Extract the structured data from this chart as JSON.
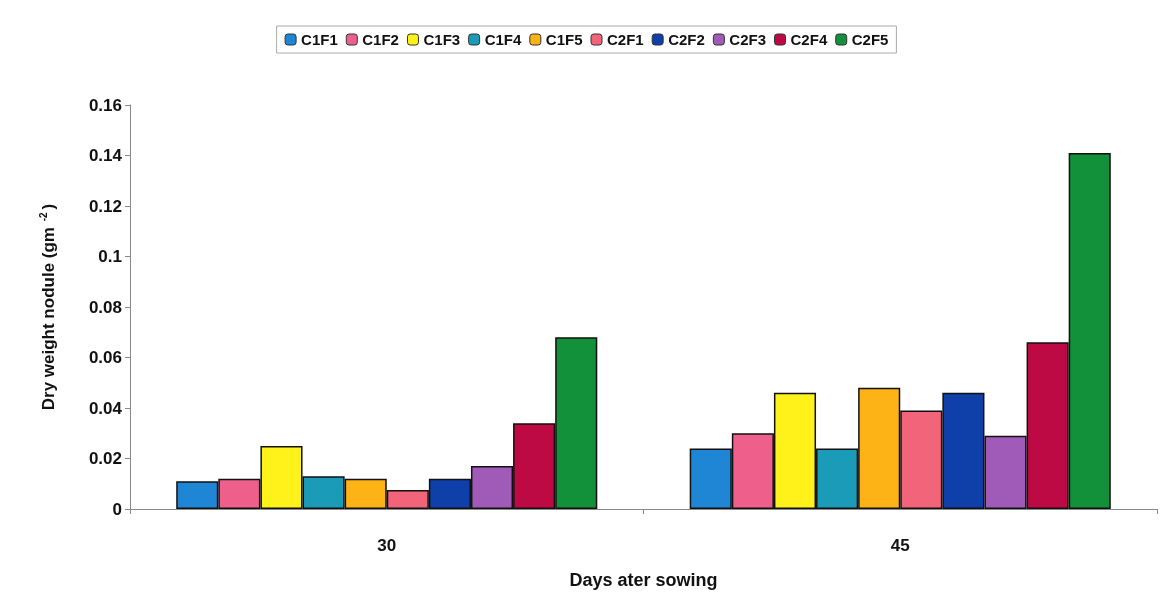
{
  "chart_data": {
    "type": "bar",
    "xlabel": "Days ater sowing",
    "ylabel": "Dry weight nodule (gm $^{-2}$)",
    "categories": [
      "30",
      "45"
    ],
    "series": [
      {
        "name": "C1F1",
        "color": "#1f86d6",
        "values": [
          0.011,
          0.024
        ]
      },
      {
        "name": "C1F2",
        "color": "#ee5f8c",
        "values": [
          0.012,
          0.03
        ]
      },
      {
        "name": "C1F3",
        "color": "#fff21a",
        "values": [
          0.025,
          0.046
        ]
      },
      {
        "name": "C1F4",
        "color": "#1a9cb8",
        "values": [
          0.013,
          0.024
        ]
      },
      {
        "name": "C1F5",
        "color": "#fdb216",
        "values": [
          0.012,
          0.048
        ]
      },
      {
        "name": "C2F1",
        "color": "#f26479",
        "values": [
          0.0075,
          0.039
        ]
      },
      {
        "name": "C2F2",
        "color": "#0f3fa8",
        "values": [
          0.012,
          0.046
        ]
      },
      {
        "name": "C2F3",
        "color": "#a05bb8",
        "values": [
          0.017,
          0.029
        ]
      },
      {
        "name": "C2F4",
        "color": "#bd0a45",
        "values": [
          0.034,
          0.066
        ]
      },
      {
        "name": "C2F5",
        "color": "#12903a",
        "values": [
          0.068,
          0.141
        ]
      }
    ],
    "ylim": [
      0,
      0.16
    ],
    "yticks": [
      0,
      0.02,
      0.04,
      0.06,
      0.08,
      0.1,
      0.12,
      0.14,
      0.16
    ],
    "grid": false,
    "legend": "top"
  }
}
